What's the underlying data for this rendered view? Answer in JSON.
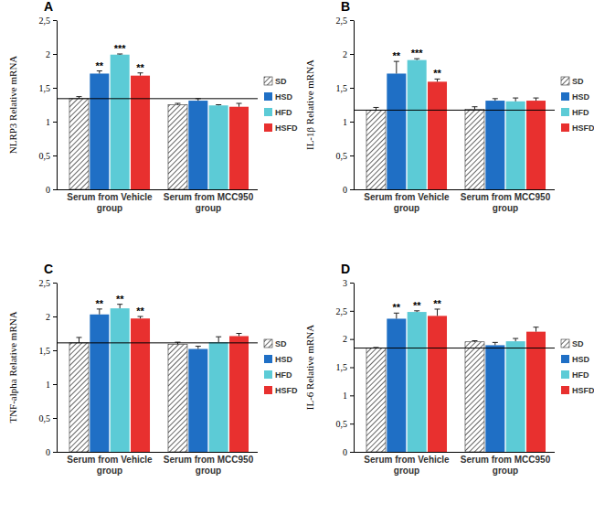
{
  "chart_data": [
    {
      "type": "bar",
      "title": "A",
      "y_label": "NLRP3 Relative mRNA",
      "categories": [
        "Serum from Vehicle group",
        "Serum from MCC950 group"
      ],
      "series": [
        {
          "name": "SD",
          "color": "#404040",
          "values": [
            1.34,
            1.25
          ],
          "errors": [
            0.03,
            0.02
          ],
          "annotations": [
            null,
            null
          ]
        },
        {
          "name": "HSD",
          "color": "#1f6fc5",
          "values": [
            1.71,
            1.31
          ],
          "errors": [
            0.04,
            0.03
          ],
          "annotations": [
            "**",
            null
          ]
        },
        {
          "name": "HFD",
          "color": "#5ccbd6",
          "values": [
            1.99,
            1.24
          ],
          "errors": [
            0.01,
            0.01
          ],
          "annotations": [
            "***",
            null
          ]
        },
        {
          "name": "HSFD",
          "color": "#e8302f",
          "values": [
            1.68,
            1.22
          ],
          "errors": [
            0.04,
            0.05
          ],
          "annotations": [
            "**",
            null
          ]
        }
      ],
      "ylim": [
        0,
        2.5
      ],
      "yticks": [
        0,
        {
          "value": 0.5,
          "label": "0,5"
        },
        1,
        {
          "value": 1.5,
          "label": "1,5"
        },
        2,
        {
          "value": 2.5,
          "label": "2,5"
        }
      ],
      "legend": "right"
    },
    {
      "type": "bar",
      "title": "B",
      "y_label": "IL-1β Relative  mRNA",
      "categories": [
        "Serum from Vehicle group",
        "Serum from MCC950 group"
      ],
      "series": [
        {
          "name": "SD",
          "color": "#404040",
          "values": [
            1.17,
            1.18
          ],
          "errors": [
            0.04,
            0.04
          ],
          "annotations": [
            null,
            null
          ]
        },
        {
          "name": "HSD",
          "color": "#1f6fc5",
          "values": [
            1.71,
            1.31
          ],
          "errors": [
            0.18,
            0.03
          ],
          "annotations": [
            "**",
            null
          ]
        },
        {
          "name": "HFD",
          "color": "#5ccbd6",
          "values": [
            1.91,
            1.3
          ],
          "errors": [
            0.02,
            0.05
          ],
          "annotations": [
            "***",
            null
          ]
        },
        {
          "name": "HSFD",
          "color": "#e8302f",
          "values": [
            1.59,
            1.31
          ],
          "errors": [
            0.04,
            0.04
          ],
          "annotations": [
            "**",
            null
          ]
        }
      ],
      "ylim": [
        0,
        2.5
      ],
      "yticks": [
        0,
        {
          "value": 0.5,
          "label": "0,5"
        },
        1,
        {
          "value": 1.5,
          "label": "1,5"
        },
        2,
        {
          "value": 2.5,
          "label": "2,5"
        }
      ],
      "legend": "right"
    },
    {
      "type": "bar",
      "title": "C",
      "y_label": "TNF-alpha Relative mRNA",
      "categories": [
        "Serum from Vehicle group",
        "Serum from MCC950 group"
      ],
      "series": [
        {
          "name": "SD",
          "color": "#404040",
          "values": [
            1.61,
            1.59
          ],
          "errors": [
            0.08,
            0.03
          ],
          "annotations": [
            null,
            null
          ]
        },
        {
          "name": "HSD",
          "color": "#1f6fc5",
          "values": [
            2.03,
            1.52
          ],
          "errors": [
            0.08,
            0.04
          ],
          "annotations": [
            "**",
            null
          ]
        },
        {
          "name": "HFD",
          "color": "#5ccbd6",
          "values": [
            2.12,
            1.62
          ],
          "errors": [
            0.06,
            0.08
          ],
          "annotations": [
            "**",
            null
          ]
        },
        {
          "name": "HSFD",
          "color": "#e8302f",
          "values": [
            1.97,
            1.71
          ],
          "errors": [
            0.03,
            0.04
          ],
          "annotations": [
            "**",
            null
          ]
        }
      ],
      "ylim": [
        0,
        2.5
      ],
      "yticks": [
        0,
        {
          "value": 0.5,
          "label": "0,5"
        },
        1,
        {
          "value": 1.5,
          "label": "1,5"
        },
        2,
        {
          "value": 2.5,
          "label": "2,5"
        }
      ],
      "legend": "right"
    },
    {
      "type": "bar",
      "title": "D",
      "y_label": "IL-6 Relative  mRNA",
      "categories": [
        "Serum from Vehicle group",
        "Serum from MCC950 group"
      ],
      "series": [
        {
          "name": "SD",
          "color": "#404040",
          "values": [
            1.84,
            1.95
          ],
          "errors": [
            0.01,
            0.02
          ],
          "annotations": [
            null,
            null
          ]
        },
        {
          "name": "HSD",
          "color": "#1f6fc5",
          "values": [
            2.36,
            1.89
          ],
          "errors": [
            0.1,
            0.05
          ],
          "annotations": [
            "**",
            null
          ]
        },
        {
          "name": "HFD",
          "color": "#5ccbd6",
          "values": [
            2.48,
            1.96
          ],
          "errors": [
            0.02,
            0.05
          ],
          "annotations": [
            "**",
            null
          ]
        },
        {
          "name": "HSFD",
          "color": "#e8302f",
          "values": [
            2.41,
            2.13
          ],
          "errors": [
            0.12,
            0.08
          ],
          "annotations": [
            "**",
            null
          ]
        }
      ],
      "ylim": [
        0,
        3
      ],
      "yticks": [
        0,
        {
          "value": 0.5,
          "label": "0,5"
        },
        1,
        {
          "value": 1.5,
          "label": "1,5"
        },
        2,
        {
          "value": 2.5,
          "label": "2,5"
        },
        3
      ],
      "legend": "right"
    }
  ]
}
